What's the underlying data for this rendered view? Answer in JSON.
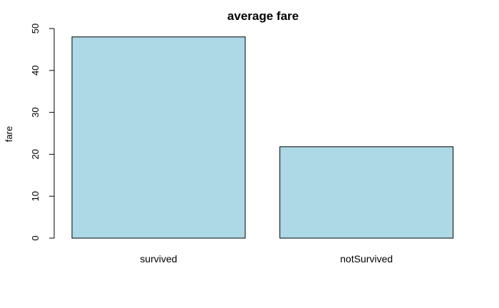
{
  "chart_data": {
    "type": "bar",
    "title": "average fare",
    "xlabel": "",
    "ylabel": "fare",
    "categories": [
      "survived",
      "notSurvived"
    ],
    "values": [
      48.0,
      21.8
    ],
    "ylim": [
      0,
      50
    ],
    "yticks": [
      "0",
      "10",
      "20",
      "30",
      "40",
      "50"
    ],
    "grid": false,
    "bar_color": "#add8e6",
    "bar_border_color": "#000000"
  }
}
